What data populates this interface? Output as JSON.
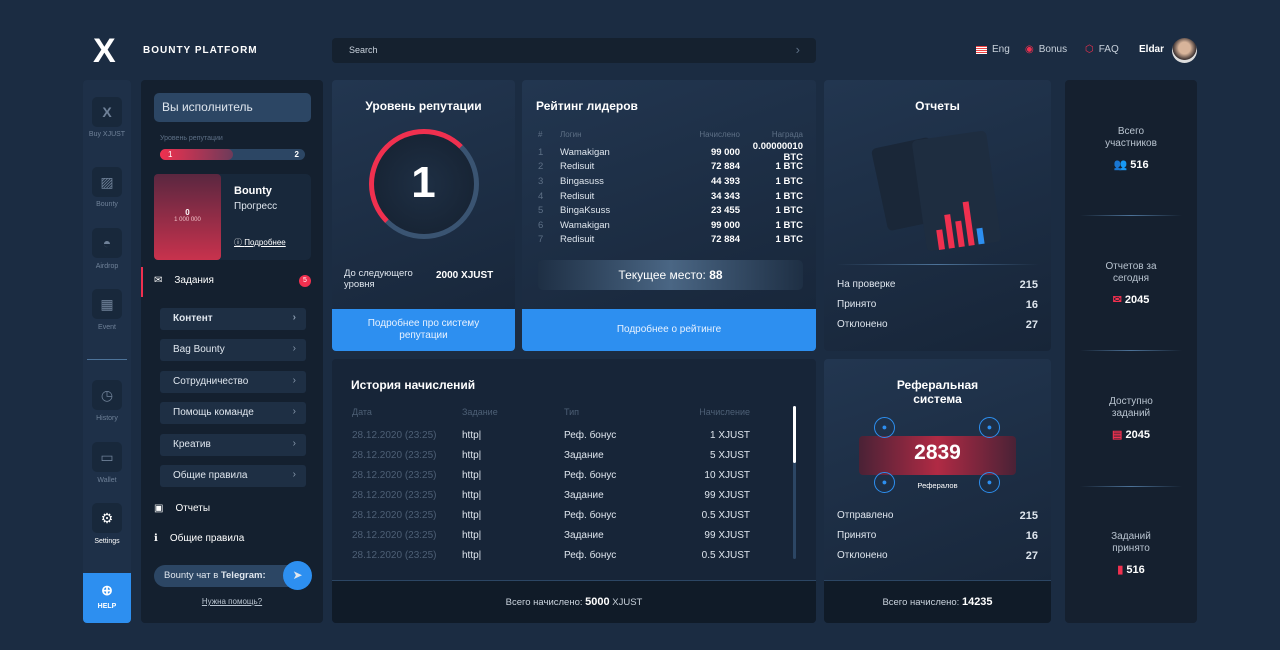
{
  "header": {
    "logo": "X",
    "brand": "BOUNTY PLATFORM",
    "search_placeholder": "Search",
    "lang": "Eng",
    "bonus": "Bonus",
    "faq": "FAQ",
    "user": "Eldar"
  },
  "iconbar": [
    {
      "label": "Buy XJUST",
      "icon": "x-logo-icon"
    },
    {
      "label": "Bounty",
      "icon": "chart-icon"
    },
    {
      "label": "Airdrop",
      "icon": "airdrop-icon"
    },
    {
      "label": "Event",
      "icon": "calendar-icon"
    },
    {
      "label": "History",
      "icon": "clock-icon"
    },
    {
      "label": "Wallet",
      "icon": "wallet-icon"
    },
    {
      "label": "Settings",
      "icon": "gear-icon"
    }
  ],
  "help": "HELP",
  "left": {
    "role": "Вы исполнитель",
    "rep_label": "Уровень репутации",
    "rep_from": "1",
    "rep_to": "2",
    "rep_progress": 0.5,
    "bounty_value": "0",
    "bounty_total": "1 000 000",
    "bounty_title": "Bounty",
    "bounty_sub": "Прогресс",
    "more": "Подробнее",
    "tasks": "Задания",
    "tasks_badge": "5",
    "menu": [
      "Контент",
      "Bag Bounty",
      "Сотрудничество",
      "Помощь команде",
      "Креатив",
      "Общие правила"
    ],
    "reports": "Отчеты",
    "rules": "Общие правила",
    "telegram_pre": "Bounty чат в ",
    "telegram": "Telegram:",
    "need_help": "Нужна помощь?"
  },
  "reputation": {
    "title": "Уровень репутации",
    "level": "1",
    "next_label": "До следующего уровня",
    "next_value": "2000 XJUST",
    "button": "Подробнее про систему репутации"
  },
  "leaders": {
    "title": "Рейтинг лидеров",
    "cols": [
      "#",
      "Логин",
      "Начислено",
      "Награда"
    ],
    "rows": [
      [
        "1",
        "Wamakigan",
        "99 000",
        "0.00000010 BTC"
      ],
      [
        "2",
        "Redisuit",
        "72 884",
        "1 BTC"
      ],
      [
        "3",
        "Bingasuss",
        "44 393",
        "1 BTC"
      ],
      [
        "4",
        "Redisuit",
        "34 343",
        "1 BTC"
      ],
      [
        "5",
        "BingaKsuss",
        "23 455",
        "1 BTC"
      ],
      [
        "6",
        "Wamakigan",
        "99 000",
        "1 BTC"
      ],
      [
        "7",
        "Redisuit",
        "72 884",
        "1 BTC"
      ]
    ],
    "current_label": "Текущее место:",
    "current": "88",
    "button": "Подробнее о рейтинге"
  },
  "reports": {
    "title": "Отчеты",
    "stats": [
      [
        "На проверке",
        "215"
      ],
      [
        "Принято",
        "16"
      ],
      [
        "Отклонено",
        "27"
      ]
    ]
  },
  "history": {
    "title": "История начислений",
    "cols": [
      "Дата",
      "Задание",
      "Тип",
      "Начисление"
    ],
    "rows": [
      [
        "28.12.2020 (23:25)",
        "http|",
        "Реф. бонус",
        "1 XJUST"
      ],
      [
        "28.12.2020 (23:25)",
        "http|",
        "Задание",
        "5 XJUST"
      ],
      [
        "28.12.2020 (23:25)",
        "http|",
        "Реф. бонус",
        "10 XJUST"
      ],
      [
        "28.12.2020 (23:25)",
        "http|",
        "Задание",
        "99 XJUST"
      ],
      [
        "28.12.2020 (23:25)",
        "http|",
        "Реф. бонус",
        "0.5 XJUST"
      ],
      [
        "28.12.2020 (23:25)",
        "http|",
        "Задание",
        "99 XJUST"
      ],
      [
        "28.12.2020 (23:25)",
        "http|",
        "Реф. бонус",
        "0.5 XJUST"
      ]
    ],
    "total_label": "Всего начислено:",
    "total": "5000",
    "total_unit": "XJUST"
  },
  "referral": {
    "title": "Реферальная система",
    "count": "2839",
    "count_label": "Рефералов",
    "stats": [
      [
        "Отправлено",
        "215"
      ],
      [
        "Принято",
        "16"
      ],
      [
        "Отклонено",
        "27"
      ]
    ],
    "total_label": "Всего начислено:",
    "total": "14235"
  },
  "right": [
    {
      "label": "Всего участников",
      "value": "516",
      "icon": "users-icon"
    },
    {
      "label": "Отчетов за сегодня",
      "value": "2045",
      "icon": "mail-icon"
    },
    {
      "label": "Доступно заданий",
      "value": "2045",
      "icon": "document-icon"
    },
    {
      "label": "Заданий принято",
      "value": "516",
      "icon": "file-check-icon"
    }
  ],
  "colors": {
    "accent": "#2d8ff0",
    "red": "#f0304f",
    "bg": "#1b2c42"
  }
}
